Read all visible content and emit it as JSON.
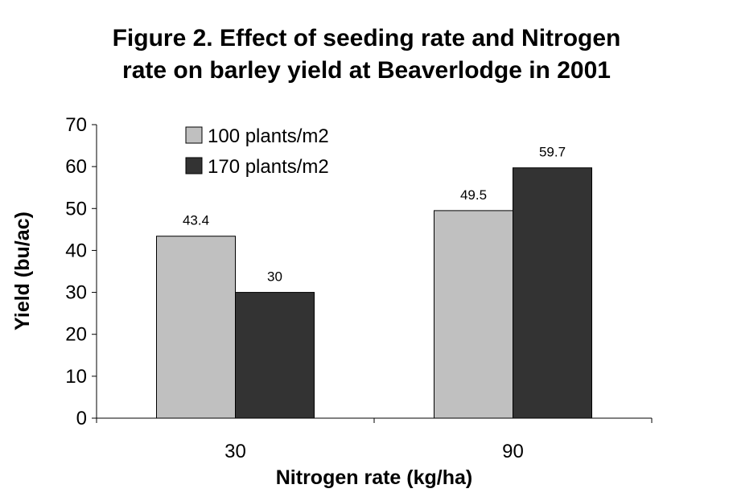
{
  "chart_data": {
    "type": "bar",
    "title_lines": [
      "Figure 2. Effect of seeding rate and Nitrogen",
      "rate on barley yield at Beaverlodge in 2001"
    ],
    "xlabel": "Nitrogen rate (kg/ha)",
    "ylabel": "Yield (bu/ac)",
    "categories": [
      "30",
      "90"
    ],
    "series": [
      {
        "name": "100 plants/m2",
        "values": [
          43.4,
          49.5
        ],
        "data_labels": [
          "43.4",
          "49.5"
        ],
        "color": "#c0c0c0"
      },
      {
        "name": "170 plants/m2",
        "values": [
          30,
          59.7
        ],
        "data_labels": [
          "30",
          "59.7"
        ],
        "color": "#333333"
      }
    ],
    "ylim": [
      0,
      70
    ],
    "yticks": [
      "0",
      "10",
      "20",
      "30",
      "40",
      "50",
      "60",
      "70"
    ],
    "grid": false,
    "legend_position": "top-left"
  }
}
